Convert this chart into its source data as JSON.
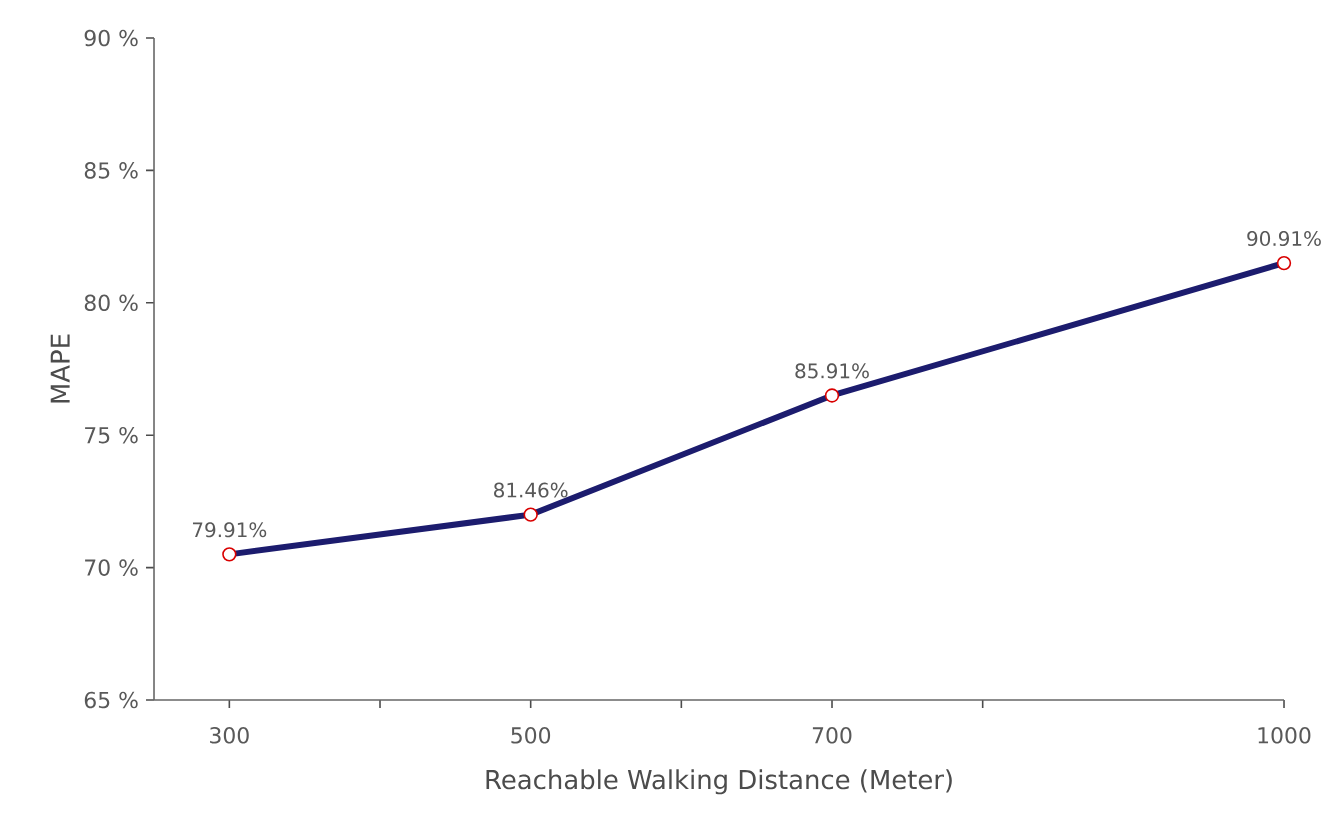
{
  "chart_data": {
    "type": "line",
    "xlabel": "Reachable Walking Distance (Meter)",
    "ylabel": "MAPE",
    "x": [
      300,
      500,
      700,
      1000
    ],
    "series": [
      {
        "color": "#1c1c6e",
        "values": [
          70.5,
          72.0,
          76.5,
          81.5
        ]
      }
    ],
    "annotations": [
      "79.91%",
      "81.46%",
      "85.91%",
      "90.91%"
    ],
    "xlim": [
      250,
      1000
    ],
    "xticks": [
      300,
      {
        "value": 400,
        "label": null
      },
      500,
      {
        "value": 600,
        "label": null
      },
      700,
      {
        "value": 800,
        "label": null
      },
      1000
    ],
    "ylim": [
      65,
      90
    ],
    "yticks": [
      {
        "value": 65,
        "label": "65 %"
      },
      {
        "value": 70,
        "label": "70 %"
      },
      {
        "value": 75,
        "label": "75 %"
      },
      {
        "value": 80,
        "label": "80 %"
      },
      {
        "value": 85,
        "label": "85 %"
      },
      {
        "value": 90,
        "label": "90 %"
      }
    ],
    "marker": "circle",
    "grid": false
  }
}
